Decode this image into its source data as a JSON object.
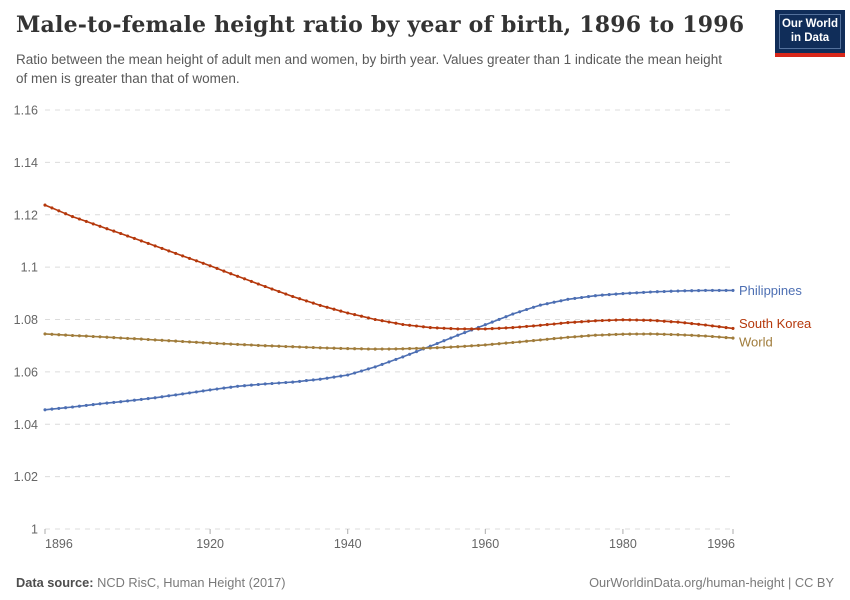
{
  "header": {
    "title": "Male-to-female height ratio by year of birth, 1896 to 1996",
    "subtitle": "Ratio between the mean height of adult men and women, by birth year. Values greater than 1 indicate the mean height of men is greater than that of women.",
    "logo": {
      "line1": "Our World",
      "line2": "in Data",
      "bg_color": "#102d59",
      "stripe_color": "#d8271a"
    }
  },
  "footer": {
    "source_label": "Data source:",
    "source_value": "NCD RisC, Human Height (2017)",
    "credit": "OurWorldinData.org/human-height | CC BY"
  },
  "chart_data": {
    "type": "line",
    "title": "Male-to-female height ratio by year of birth, 1896 to 1996",
    "xlabel": "",
    "ylabel": "",
    "x_range": [
      1896,
      1996
    ],
    "y_range": [
      1,
      1.16
    ],
    "grid": "horizontal-dashed",
    "legend_position": "right-of-line-ends",
    "marker": "dot-per-year",
    "x_ticks": [
      1896,
      1920,
      1940,
      1960,
      1980,
      1996
    ],
    "y_ticks": [
      1,
      1.02,
      1.04,
      1.06,
      1.08,
      1.1,
      1.12,
      1.14,
      1.16
    ],
    "y_tick_labels": [
      "1",
      "1.02",
      "1.04",
      "1.06",
      "1.08",
      "1.1",
      "1.12",
      "1.14",
      "1.16"
    ],
    "grid_color": "#dcdcdc",
    "axis_text_color": "#666666",
    "tick_mark_color": "#ababab",
    "series": [
      {
        "name": "Philippines",
        "color": "#4d6fb3",
        "label_dy": 0,
        "points": [
          [
            1896,
            1.0455
          ],
          [
            1900,
            1.0466
          ],
          [
            1904,
            1.0478
          ],
          [
            1908,
            1.0489
          ],
          [
            1912,
            1.0501
          ],
          [
            1916,
            1.0516
          ],
          [
            1920,
            1.0531
          ],
          [
            1924,
            1.0545
          ],
          [
            1928,
            1.0554
          ],
          [
            1932,
            1.0561
          ],
          [
            1936,
            1.0572
          ],
          [
            1940,
            1.0588
          ],
          [
            1944,
            1.0619
          ],
          [
            1948,
            1.0657
          ],
          [
            1952,
            1.0698
          ],
          [
            1956,
            1.074
          ],
          [
            1960,
            1.078
          ],
          [
            1964,
            1.0821
          ],
          [
            1968,
            1.0855
          ],
          [
            1972,
            1.0877
          ],
          [
            1976,
            1.0891
          ],
          [
            1980,
            1.0899
          ],
          [
            1984,
            1.0905
          ],
          [
            1988,
            1.0909
          ],
          [
            1992,
            1.0911
          ],
          [
            1996,
            1.0911
          ]
        ]
      },
      {
        "name": "South Korea",
        "color": "#b5380c",
        "label_dy": -5,
        "points": [
          [
            1896,
            1.1237
          ],
          [
            1900,
            1.1193
          ],
          [
            1904,
            1.1156
          ],
          [
            1908,
            1.1119
          ],
          [
            1912,
            1.1081
          ],
          [
            1916,
            1.1043
          ],
          [
            1920,
            1.1005
          ],
          [
            1924,
            1.0965
          ],
          [
            1928,
            1.0926
          ],
          [
            1932,
            1.0888
          ],
          [
            1936,
            1.0854
          ],
          [
            1940,
            1.0825
          ],
          [
            1944,
            1.08
          ],
          [
            1948,
            1.0781
          ],
          [
            1952,
            1.0769
          ],
          [
            1956,
            1.0764
          ],
          [
            1960,
            1.0764
          ],
          [
            1964,
            1.0769
          ],
          [
            1968,
            1.0778
          ],
          [
            1972,
            1.0788
          ],
          [
            1976,
            1.0795
          ],
          [
            1980,
            1.0799
          ],
          [
            1984,
            1.0797
          ],
          [
            1988,
            1.079
          ],
          [
            1992,
            1.0779
          ],
          [
            1996,
            1.0766
          ]
        ]
      },
      {
        "name": "World",
        "color": "#a07c3b",
        "label_dy": 4,
        "points": [
          [
            1896,
            1.0745
          ],
          [
            1900,
            1.0739
          ],
          [
            1904,
            1.0734
          ],
          [
            1908,
            1.0728
          ],
          [
            1912,
            1.0722
          ],
          [
            1916,
            1.0716
          ],
          [
            1920,
            1.071
          ],
          [
            1924,
            1.0705
          ],
          [
            1928,
            1.07
          ],
          [
            1932,
            1.0696
          ],
          [
            1936,
            1.0692
          ],
          [
            1940,
            1.0689
          ],
          [
            1944,
            1.0687
          ],
          [
            1948,
            1.0688
          ],
          [
            1952,
            1.0691
          ],
          [
            1956,
            1.0696
          ],
          [
            1960,
            1.0703
          ],
          [
            1964,
            1.0712
          ],
          [
            1968,
            1.0722
          ],
          [
            1972,
            1.0732
          ],
          [
            1976,
            1.074
          ],
          [
            1980,
            1.0744
          ],
          [
            1984,
            1.0745
          ],
          [
            1988,
            1.0742
          ],
          [
            1992,
            1.0737
          ],
          [
            1996,
            1.0729
          ]
        ]
      }
    ]
  }
}
